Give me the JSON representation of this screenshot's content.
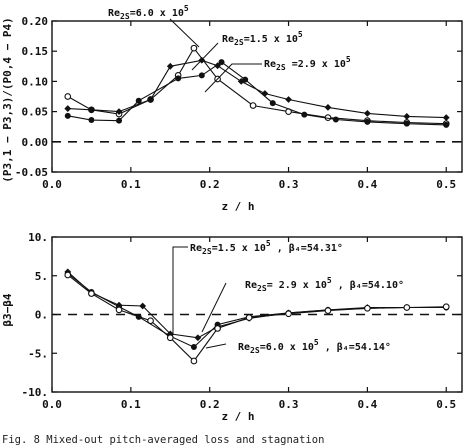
{
  "chart_data": [
    {
      "type": "line",
      "ylabel": "(P3,1 − P3,3)/(P0,4 − P4)",
      "xlabel": "z / h",
      "xlim": [
        0,
        0.52
      ],
      "ylim": [
        -0.05,
        0.2
      ],
      "xticks": [
        "0.0",
        "0.1",
        "0.2",
        "0.3",
        "0.4",
        "0.5"
      ],
      "yticks": [
        "-0.05",
        "0.00",
        "0.05",
        "0.10",
        "0.15",
        "0.20"
      ],
      "zero_line": "dashed",
      "series": [
        {
          "name": "Re2S = 6.0 x 10^5",
          "marker": "open-circle",
          "x": [
            0.02,
            0.05,
            0.085,
            0.125,
            0.16,
            0.18,
            0.21,
            0.255,
            0.3,
            0.35,
            0.4,
            0.45,
            0.5
          ],
          "y": [
            0.075,
            0.053,
            0.046,
            0.07,
            0.11,
            0.155,
            0.104,
            0.06,
            0.05,
            0.04,
            0.035,
            0.032,
            0.03
          ]
        },
        {
          "name": "Re2S = 1.5 x 10^5",
          "marker": "filled-circle",
          "x": [
            0.02,
            0.05,
            0.085,
            0.11,
            0.16,
            0.19,
            0.215,
            0.245,
            0.28,
            0.32,
            0.36,
            0.4,
            0.45,
            0.5
          ],
          "y": [
            0.043,
            0.036,
            0.035,
            0.068,
            0.105,
            0.11,
            0.132,
            0.103,
            0.064,
            0.045,
            0.037,
            0.033,
            0.03,
            0.028
          ]
        },
        {
          "name": "Re2S = 2.9 x 10^5",
          "marker": "diamond",
          "x": [
            0.02,
            0.05,
            0.085,
            0.125,
            0.15,
            0.19,
            0.21,
            0.24,
            0.27,
            0.3,
            0.35,
            0.4,
            0.45,
            0.5
          ],
          "y": [
            0.055,
            0.053,
            0.05,
            0.07,
            0.125,
            0.135,
            0.126,
            0.1,
            0.08,
            0.07,
            0.057,
            0.047,
            0.042,
            0.04
          ]
        }
      ],
      "annotations": [
        {
          "prefix": "Re",
          "sub": "2S",
          "suffix": "=6.0 x 10",
          "sup": "5"
        },
        {
          "prefix": "Re",
          "sub": "2S",
          "suffix": "=1.5 x 10",
          "sup": "5"
        },
        {
          "prefix": "Re",
          "sub": "2S",
          "suffix": " =2.9 x 10",
          "sup": "5"
        }
      ]
    },
    {
      "type": "line",
      "ylabel": "β3−β4",
      "xlabel": "z / h",
      "xlim": [
        0,
        0.52
      ],
      "ylim": [
        -10,
        10
      ],
      "xticks": [
        "0.0",
        "0.1",
        "0.2",
        "0.3",
        "0.4",
        "0.5"
      ],
      "yticks": [
        "-10.",
        "-5.",
        "0.",
        "5.",
        "10."
      ],
      "zero_line": "dashed",
      "series": [
        {
          "name": "Re2S = 1.5 x 10^5, β4 = 54.31°",
          "marker": "filled-circle",
          "x": [
            0.02,
            0.05,
            0.085,
            0.11,
            0.15,
            0.18,
            0.21,
            0.25,
            0.3,
            0.35,
            0.4,
            0.45,
            0.5
          ],
          "y": [
            5.3,
            2.9,
            1.0,
            -0.3,
            -2.8,
            -4.2,
            -1.3,
            -0.3,
            0.2,
            0.6,
            0.8,
            0.9,
            0.9
          ]
        },
        {
          "name": "Re2S = 2.9 x 10^5, β4 = 54.10°",
          "marker": "diamond",
          "x": [
            0.02,
            0.05,
            0.085,
            0.115,
            0.15,
            0.185,
            0.21,
            0.25,
            0.3,
            0.35,
            0.4,
            0.45,
            0.5
          ],
          "y": [
            5.5,
            2.8,
            1.2,
            1.1,
            -2.5,
            -3.0,
            -1.6,
            -0.5,
            0.2,
            0.6,
            0.9,
            0.9,
            0.9
          ]
        },
        {
          "name": "Re2S = 6.0 x 10^5, β4 = 54.14°",
          "marker": "open-circle",
          "x": [
            0.02,
            0.05,
            0.085,
            0.125,
            0.15,
            0.18,
            0.21,
            0.25,
            0.3,
            0.35,
            0.4,
            0.45,
            0.5
          ],
          "y": [
            5.1,
            2.7,
            0.6,
            -0.8,
            -3.0,
            -6.0,
            -1.8,
            -0.4,
            0.1,
            0.5,
            0.8,
            0.9,
            1.0
          ]
        }
      ],
      "annotations": [
        {
          "prefix": "Re",
          "sub": "2S",
          "suffix": "=1.5 x 10",
          "sup": "5",
          "tail": " , β₄=54.31°"
        },
        {
          "prefix": "Re",
          "sub": "2S",
          "suffix": "= 2.9 x 10",
          "sup": "5",
          "tail": " , β₄=54.10°"
        },
        {
          "prefix": "Re",
          "sub": "2S",
          "suffix": "=6.0 x 10",
          "sup": "5",
          "tail": " , β₄=54.14°"
        }
      ]
    }
  ],
  "caption": "Fig. 8  Mixed-out pitch-averaged loss and stagnation"
}
